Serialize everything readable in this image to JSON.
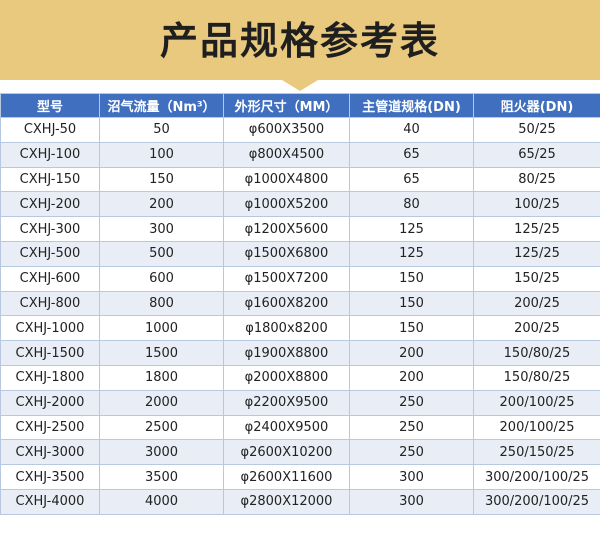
{
  "banner": {
    "title": "产品规格参考表"
  },
  "table": {
    "headers": [
      "型号",
      "沼气流量（Nm³）",
      "外形尺寸（MM）",
      "主管道规格(DN)",
      "阻火器(DN)"
    ],
    "rows": [
      [
        "CXHJ-50",
        "50",
        "φ600X3500",
        "40",
        "50/25"
      ],
      [
        "CXHJ-100",
        "100",
        "φ800X4500",
        "65",
        "65/25"
      ],
      [
        "CXHJ-150",
        "150",
        "φ1000X4800",
        "65",
        "80/25"
      ],
      [
        "CXHJ-200",
        "200",
        "φ1000X5200",
        "80",
        "100/25"
      ],
      [
        "CXHJ-300",
        "300",
        "φ1200X5600",
        "125",
        "125/25"
      ],
      [
        "CXHJ-500",
        "500",
        "φ1500X6800",
        "125",
        "125/25"
      ],
      [
        "CXHJ-600",
        "600",
        "φ1500X7200",
        "150",
        "150/25"
      ],
      [
        "CXHJ-800",
        "800",
        "φ1600X8200",
        "150",
        "200/25"
      ],
      [
        "CXHJ-1000",
        "1000",
        "φ1800x8200",
        "150",
        "200/25"
      ],
      [
        "CXHJ-1500",
        "1500",
        "φ1900X8800",
        "200",
        "150/80/25"
      ],
      [
        "CXHJ-1800",
        "1800",
        "φ2000X8800",
        "200",
        "150/80/25"
      ],
      [
        "CXHJ-2000",
        "2000",
        "φ2200X9500",
        "250",
        "200/100/25"
      ],
      [
        "CXHJ-2500",
        "2500",
        "φ2400X9500",
        "250",
        "200/100/25"
      ],
      [
        "CXHJ-3000",
        "3000",
        "φ2600X10200",
        "250",
        "250/150/25"
      ],
      [
        "CXHJ-3500",
        "3500",
        "φ2600X11600",
        "300",
        "300/200/100/25"
      ],
      [
        "CXHJ-4000",
        "4000",
        "φ2800X12000",
        "300",
        "300/200/100/25"
      ]
    ]
  },
  "colors": {
    "banner": "#e9c97d",
    "header": "#3f6fbe",
    "stripe": "#e9eef6"
  }
}
